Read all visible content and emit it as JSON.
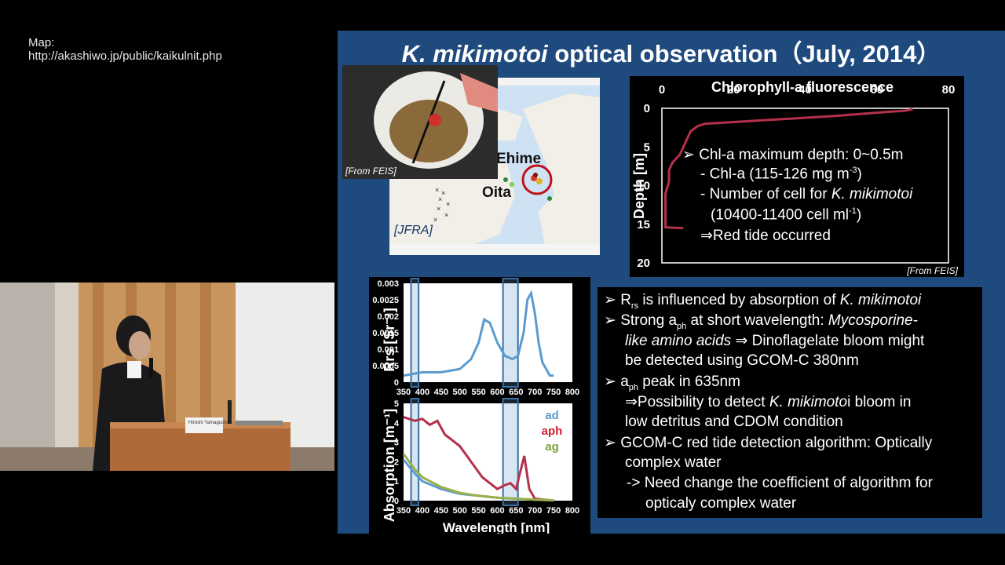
{
  "map_credit": {
    "line1": "Map:",
    "line2": "http://akashiwo.jp/public/kaikulnit.php"
  },
  "slide": {
    "title_italic": "K. mikimotoi",
    "title_rest": " optical observation（July, 2014）",
    "photo_credit": "[From FEIS]",
    "map_labels": {
      "ehime": "Ehime",
      "oita": "Oita",
      "jfra": "[JFRA]"
    },
    "speaker_name_plate": "Hiroshi Yamaguchi"
  },
  "profile": {
    "title": "Chlorophyll-a fluorescence",
    "ylabel": "Depth [m]",
    "credit": "[From FEIS]",
    "notes": {
      "l1": "➢  Chl-a maximum depth: 0~0.5m",
      "l2": "- Chl-a (115-126 mg m",
      "l2_sup": "-3",
      "l2_end": ")",
      "l3": "- Number of cell for ",
      "l3_it": "K. mikimotoi",
      "l4": "(10400-11400 cell ml",
      "l4_sup": "-1",
      "l4_end": ")",
      "l5": "⇒Red tide occurred"
    }
  },
  "spectra": {
    "rrs_ylabel": "Rrs [Sr⁻¹]",
    "abs_ylabel": "Absorption [m⁻¹]",
    "xlabel": "Wavelength [nm]",
    "legend": {
      "ad": "ad",
      "aph": "aph",
      "ag": "ag"
    }
  },
  "notes": {
    "b1_pre": "➢  R",
    "b1_sub": "rs",
    "b1_mid": " is influenced by absorption of ",
    "b1_it": "K. mikimotoi",
    "b2_pre": "➢  Strong a",
    "b2_sub": "ph",
    "b2_mid": " at short wavelength: ",
    "b2_it": "Mycosporine-",
    "b3_it": "like amino acids",
    "b3_rest": " ⇒ Dinoflagelate bloom might",
    "b4": "be detected using GCOM-C 380nm",
    "b5_pre": "➢  a",
    "b5_sub": "ph",
    "b5_rest": " peak in 635nm",
    "b6_pre": "⇒Possibility to detect ",
    "b6_it": "K. mikimoto",
    "b6_rest": "i bloom in",
    "b7": "low detritus and CDOM condition",
    "b8": "➢  GCOM-C red tide detection algorithm: Optically",
    "b9": "complex water",
    "b10": "-> Need change the coefficient of algorithm for",
    "b11": "opticaly complex water"
  },
  "chart_data": [
    {
      "type": "line",
      "title": "Chlorophyll-a fluorescence",
      "xlabel": "",
      "ylabel": "Depth [m]",
      "xlim": [
        0,
        80
      ],
      "ylim": [
        20,
        0
      ],
      "x_ticks": [
        0,
        20,
        40,
        60,
        80
      ],
      "y_ticks": [
        0,
        5,
        10,
        15,
        20
      ],
      "color": "#b5304a",
      "series": [
        {
          "x": [
            70,
            68,
            62,
            48,
            30,
            12,
            10,
            8,
            7,
            6,
            5,
            3,
            2,
            2,
            1,
            1,
            1,
            1,
            6
          ],
          "y": [
            0.1,
            0.3,
            0.5,
            1.0,
            1.5,
            2.0,
            2.3,
            3.0,
            4.0,
            5.0,
            6.0,
            7.0,
            8.0,
            9.5,
            11,
            12.5,
            14,
            15.4,
            15.5
          ]
        }
      ]
    },
    {
      "type": "line",
      "ylabel": "Rrs [Sr⁻¹]",
      "xlim": [
        350,
        800
      ],
      "ylim": [
        0,
        0.003
      ],
      "x_ticks": [
        350,
        400,
        450,
        500,
        550,
        600,
        650,
        700,
        750,
        800
      ],
      "y_ticks": [
        0,
        0.0005,
        0.001,
        0.0015,
        0.002,
        0.0025,
        0.003
      ],
      "color": "#5a9bd0",
      "highlight_bands_nm": [
        [
          370,
          390
        ],
        [
          615,
          655
        ]
      ],
      "series": [
        {
          "x": [
            350,
            400,
            450,
            500,
            530,
            550,
            565,
            580,
            600,
            620,
            640,
            655,
            670,
            680,
            690,
            700,
            710,
            720,
            740,
            750
          ],
          "y": [
            0.0002,
            0.0003,
            0.0003,
            0.0004,
            0.0007,
            0.0012,
            0.0019,
            0.0018,
            0.0012,
            0.0008,
            0.0007,
            0.0008,
            0.0015,
            0.0025,
            0.0027,
            0.0021,
            0.0012,
            0.0006,
            0.0002,
            0.0002
          ]
        }
      ]
    },
    {
      "type": "line",
      "ylabel": "Absorption [m⁻¹]",
      "xlabel": "Wavelength [nm]",
      "xlim": [
        350,
        800
      ],
      "ylim": [
        0,
        5
      ],
      "x_ticks": [
        350,
        400,
        450,
        500,
        550,
        600,
        650,
        700,
        750,
        800
      ],
      "y_ticks": [
        0,
        1,
        2,
        3,
        4,
        5
      ],
      "highlight_bands_nm": [
        [
          370,
          390
        ],
        [
          615,
          655
        ]
      ],
      "legend": "top-right",
      "series": [
        {
          "name": "ad",
          "color": "#5a9bd0",
          "x": [
            350,
            380,
            400,
            450,
            500,
            550,
            600,
            650,
            700,
            750
          ],
          "y": [
            2.1,
            1.4,
            1.0,
            0.6,
            0.35,
            0.25,
            0.15,
            0.1,
            0.05,
            0.02
          ]
        },
        {
          "name": "aph",
          "color": "#b5304a",
          "x": [
            350,
            380,
            400,
            420,
            440,
            460,
            480,
            500,
            530,
            560,
            580,
            600,
            620,
            635,
            650,
            660,
            672,
            685,
            700,
            750
          ],
          "y": [
            4.3,
            4.1,
            4.2,
            3.9,
            4.1,
            3.4,
            3.1,
            2.8,
            2.0,
            1.2,
            0.9,
            0.6,
            0.8,
            0.9,
            0.6,
            1.4,
            2.3,
            0.6,
            0.1,
            0.0
          ]
        },
        {
          "name": "ag",
          "color": "#9ab04a",
          "x": [
            350,
            380,
            400,
            450,
            500,
            550,
            600,
            650,
            700,
            750
          ],
          "y": [
            2.4,
            1.6,
            1.2,
            0.7,
            0.4,
            0.25,
            0.15,
            0.1,
            0.05,
            0.02
          ]
        }
      ]
    }
  ]
}
